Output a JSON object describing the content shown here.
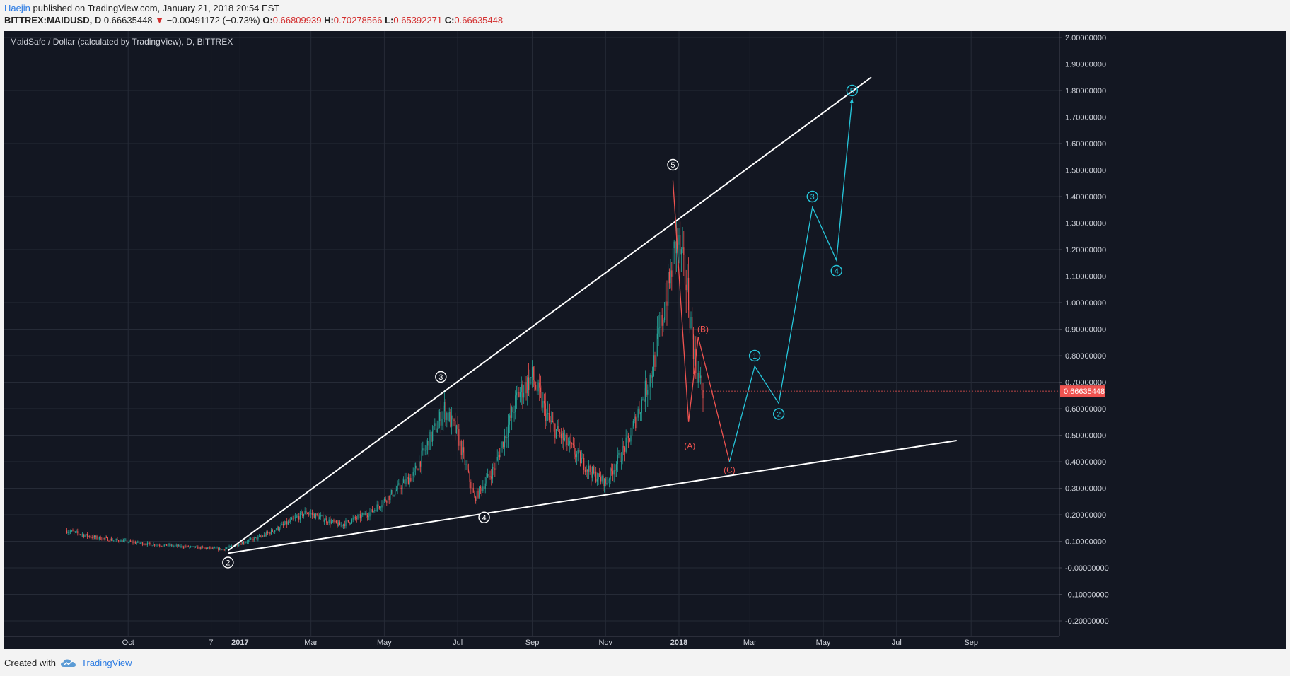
{
  "header": {
    "author": "Haejin",
    "published": "published on TradingView.com, January 21, 2018 20:54 EST",
    "symbol": "BITTREX:MAIDUSD, D",
    "last": "0.66635448",
    "change_arrow": "▼",
    "change": "−0.00491172 (−0.73%)",
    "o_label": "O:",
    "o_value": "0.66809939",
    "h_label": "H:",
    "h_value": "0.70278566",
    "l_label": "L:",
    "l_value": "0.65392271",
    "c_label": "C:",
    "c_value": "0.66635448"
  },
  "footer": {
    "created_with": "Created with",
    "brand": "TradingView",
    "logo_icon": "tradingview-cloud-icon"
  },
  "colors": {
    "background": "#131722",
    "grid": "#262b37",
    "up": "#26a69a",
    "down": "#ef5350",
    "trendline": "#ffffff",
    "bull_wave": "#26c6da",
    "corr_wave": "#ef5350",
    "axis_text": "#d1d4dc",
    "price_tag": "#ef5350"
  },
  "chart_data": {
    "type": "candlestick",
    "title": "MaidSafe / Dollar (calculated by TradingView), D, BITTREX",
    "x_ticks": [
      "Oct",
      "7",
      "2017",
      "Mar",
      "May",
      "Jul",
      "Sep",
      "Nov",
      "2018",
      "Mar",
      "May",
      "Jul",
      "Sep"
    ],
    "y_ticks": [
      "2.00000000",
      "1.90000000",
      "1.80000000",
      "1.70000000",
      "1.60000000",
      "1.50000000",
      "1.40000000",
      "1.30000000",
      "1.20000000",
      "1.10000000",
      "1.00000000",
      "0.90000000",
      "0.80000000",
      "0.70000000",
      "0.60000000",
      "0.50000000",
      "0.40000000",
      "0.30000000",
      "0.20000000",
      "0.10000000",
      "-0.00000000",
      "-0.10000000",
      "-0.20000000"
    ],
    "y_range": [
      -0.2,
      2.0
    ],
    "last_price": "0.66635448",
    "price_path": [
      [
        "2016-08-10",
        0.14
      ],
      [
        "2016-09-01",
        0.115
      ],
      [
        "2016-10-15",
        0.09
      ],
      [
        "2016-12-01",
        0.075
      ],
      [
        "2016-12-18",
        0.07
      ],
      [
        "2017-01-20",
        0.12
      ],
      [
        "2017-02-10",
        0.17
      ],
      [
        "2017-02-25",
        0.21
      ],
      [
        "2017-03-25",
        0.16
      ],
      [
        "2017-04-20",
        0.21
      ],
      [
        "2017-05-25",
        0.35
      ],
      [
        "2017-06-15",
        0.55
      ],
      [
        "2017-06-20",
        0.6
      ],
      [
        "2017-07-01",
        0.5
      ],
      [
        "2017-07-15",
        0.26
      ],
      [
        "2017-08-01",
        0.38
      ],
      [
        "2017-08-20",
        0.65
      ],
      [
        "2017-09-01",
        0.72
      ],
      [
        "2017-09-15",
        0.55
      ],
      [
        "2017-10-20",
        0.36
      ],
      [
        "2017-11-01",
        0.32
      ],
      [
        "2017-11-20",
        0.48
      ],
      [
        "2017-12-10",
        0.75
      ],
      [
        "2017-12-25",
        1.1
      ],
      [
        "2017-12-30",
        1.25
      ],
      [
        "2018-01-08",
        1.05
      ],
      [
        "2018-01-15",
        0.75
      ],
      [
        "2018-01-21",
        0.666
      ]
    ],
    "trendlines": [
      {
        "name": "upper-trendline",
        "from": [
          "2016-12-22",
          0.065
        ],
        "to": [
          "2018-06-10",
          1.85
        ]
      },
      {
        "name": "lower-trendline",
        "from": [
          "2016-12-22",
          0.055
        ],
        "to": [
          "2018-08-20",
          0.48
        ]
      }
    ],
    "wave_labels_primary": [
      {
        "label": "2",
        "date": "2016-12-22",
        "value": 0.02
      },
      {
        "label": "3",
        "date": "2017-06-17",
        "value": 0.72
      },
      {
        "label": "4",
        "date": "2017-07-23",
        "value": 0.19
      },
      {
        "label": "5",
        "date": "2017-12-27",
        "value": 1.52
      }
    ],
    "correction_path": {
      "points": [
        [
          "2017-12-27",
          1.46
        ],
        [
          "2018-01-09",
          0.55
        ],
        [
          "2018-01-17",
          0.87
        ],
        [
          "2018-02-12",
          0.4
        ]
      ],
      "labels": [
        {
          "label": "(A)",
          "date": "2018-01-10",
          "value": 0.46
        },
        {
          "label": "(B)",
          "date": "2018-01-21",
          "value": 0.9
        },
        {
          "label": "(C)",
          "date": "2018-02-12",
          "value": 0.37
        }
      ]
    },
    "projection_path": {
      "points": [
        [
          "2018-02-12",
          0.4
        ],
        [
          "2018-03-05",
          0.76
        ],
        [
          "2018-03-25",
          0.62
        ],
        [
          "2018-04-22",
          1.36
        ],
        [
          "2018-05-12",
          1.16
        ],
        [
          "2018-05-25",
          1.77
        ]
      ],
      "labels": [
        {
          "label": "1",
          "date": "2018-03-05",
          "value": 0.8
        },
        {
          "label": "2",
          "date": "2018-03-25",
          "value": 0.58
        },
        {
          "label": "3",
          "date": "2018-04-22",
          "value": 1.4
        },
        {
          "label": "4",
          "date": "2018-05-12",
          "value": 1.12
        },
        {
          "label": "5",
          "date": "2018-05-25",
          "value": 1.8
        }
      ]
    }
  }
}
